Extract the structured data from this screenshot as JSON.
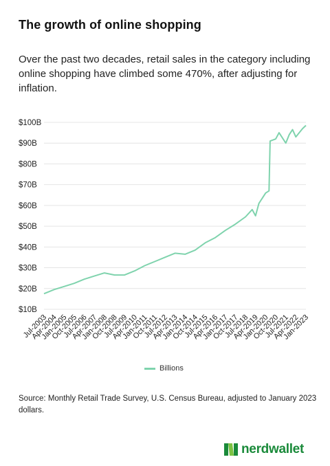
{
  "title": "The growth of online shopping",
  "subtitle": "Over the past two decades, retail sales in the category including online shopping have climbed some 470%, after adjusting for inflation.",
  "source": "Source: Monthly Retail Trade Survey, U.S. Census Bureau, adjusted to January 2023 dollars.",
  "logo": {
    "text": "nerdwallet",
    "icon": "nerdwallet-n-logo-icon"
  },
  "colors": {
    "line": "#7fd3ad",
    "grid": "#e4e4e4",
    "text": "#222222",
    "brand": "#1a8a3a"
  },
  "chart_data": {
    "type": "line",
    "title": "",
    "xlabel": "",
    "ylabel": "",
    "ylim": [
      10,
      100
    ],
    "y_ticks": [
      10,
      20,
      30,
      40,
      50,
      60,
      70,
      80,
      90,
      100
    ],
    "y_tick_labels": [
      "$10B",
      "$20B",
      "$30B",
      "$40B",
      "$50B",
      "$60B",
      "$70B",
      "$80B",
      "$90B",
      "$100B"
    ],
    "x_tick_labels": [
      "Jul-2003",
      "Apr-2004",
      "Jan-2005",
      "Oct-2005",
      "Jul-2006",
      "Apr-2007",
      "Jan-2008",
      "Oct-2008",
      "Jul-2009",
      "Apr-2010",
      "Jan-2011",
      "Oct-2011",
      "Jul-2012",
      "Apr-2013",
      "Jan-2014",
      "Oct-2014",
      "Jul-2015",
      "Apr-2016",
      "Jan-2017",
      "Oct-2017",
      "Jul-2018",
      "Apr-2019",
      "Jan-2020",
      "Oct-2020",
      "Jul-2021",
      "Apr-2022",
      "Jan-2023"
    ],
    "grid": "horizontal",
    "legend_position": "bottom",
    "series": [
      {
        "name": "Billions",
        "x": [
          "Jul-2003",
          "Apr-2004",
          "Jan-2005",
          "Oct-2005",
          "Jul-2006",
          "Apr-2007",
          "Jan-2008",
          "Oct-2008",
          "Jul-2009",
          "Apr-2010",
          "Jan-2011",
          "Oct-2011",
          "Jul-2012",
          "Apr-2013",
          "Jan-2014",
          "Oct-2014",
          "Jul-2015",
          "Apr-2016",
          "Jan-2017",
          "Oct-2017",
          "Jul-2018",
          "Jan-2019",
          "Apr-2019",
          "Jul-2019",
          "Jan-2020",
          "Apr-2020",
          "May-2020",
          "Oct-2020",
          "Jan-2021",
          "Jul-2021",
          "Oct-2021",
          "Jan-2022",
          "Apr-2022",
          "Jul-2022",
          "Oct-2022",
          "Jan-2023"
        ],
        "values": [
          17.5,
          19.5,
          21,
          22.5,
          24.5,
          26,
          27.5,
          26.5,
          26.5,
          28.5,
          31,
          33,
          35,
          37,
          36.5,
          38.5,
          42,
          44.5,
          48,
          51,
          54.5,
          58,
          55,
          61,
          66,
          67,
          91,
          92,
          95,
          90,
          94,
          96.5,
          93,
          95,
          97,
          98.5
        ]
      }
    ]
  }
}
